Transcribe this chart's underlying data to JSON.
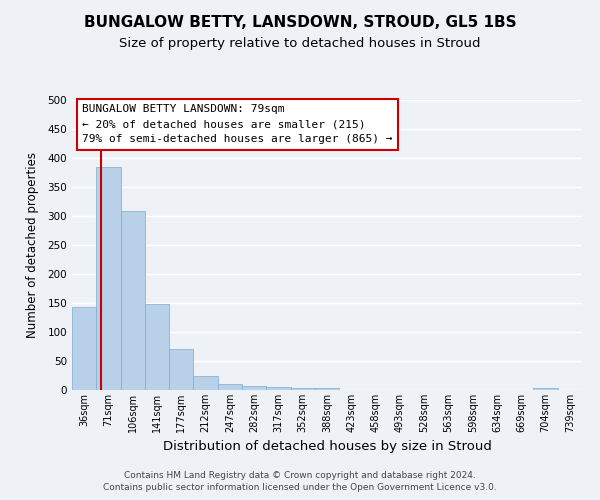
{
  "title": "BUNGALOW BETTY, LANSDOWN, STROUD, GL5 1BS",
  "subtitle": "Size of property relative to detached houses in Stroud",
  "xlabel": "Distribution of detached houses by size in Stroud",
  "ylabel": "Number of detached properties",
  "bar_labels": [
    "36sqm",
    "71sqm",
    "106sqm",
    "141sqm",
    "177sqm",
    "212sqm",
    "247sqm",
    "282sqm",
    "317sqm",
    "352sqm",
    "388sqm",
    "423sqm",
    "458sqm",
    "493sqm",
    "528sqm",
    "563sqm",
    "598sqm",
    "634sqm",
    "669sqm",
    "704sqm",
    "739sqm"
  ],
  "bar_heights": [
    143,
    385,
    308,
    148,
    70,
    25,
    10,
    7,
    5,
    3,
    3,
    0,
    0,
    0,
    0,
    0,
    0,
    0,
    0,
    4,
    0
  ],
  "bar_color": "#b8d0e8",
  "bar_edge_color": "#7aafd4",
  "annotation_title": "BUNGALOW BETTY LANSDOWN: 79sqm",
  "annotation_line1": "← 20% of detached houses are smaller (215)",
  "annotation_line2": "79% of semi-detached houses are larger (865) →",
  "annotation_box_color": "#ffffff",
  "annotation_box_edge": "#cc0000",
  "red_line_color": "#cc0000",
  "ylim": [
    0,
    500
  ],
  "yticks": [
    0,
    50,
    100,
    150,
    200,
    250,
    300,
    350,
    400,
    450,
    500
  ],
  "footer1": "Contains HM Land Registry data © Crown copyright and database right 2024.",
  "footer2": "Contains public sector information licensed under the Open Government Licence v3.0.",
  "bg_color": "#eef2f7",
  "plot_bg_color": "#eef2f7",
  "grid_color": "#ffffff",
  "title_fontsize": 11,
  "subtitle_fontsize": 9.5,
  "xlabel_fontsize": 9.5,
  "ylabel_fontsize": 8.5,
  "tick_fontsize": 7,
  "annotation_fontsize": 8,
  "footer_fontsize": 6.5
}
